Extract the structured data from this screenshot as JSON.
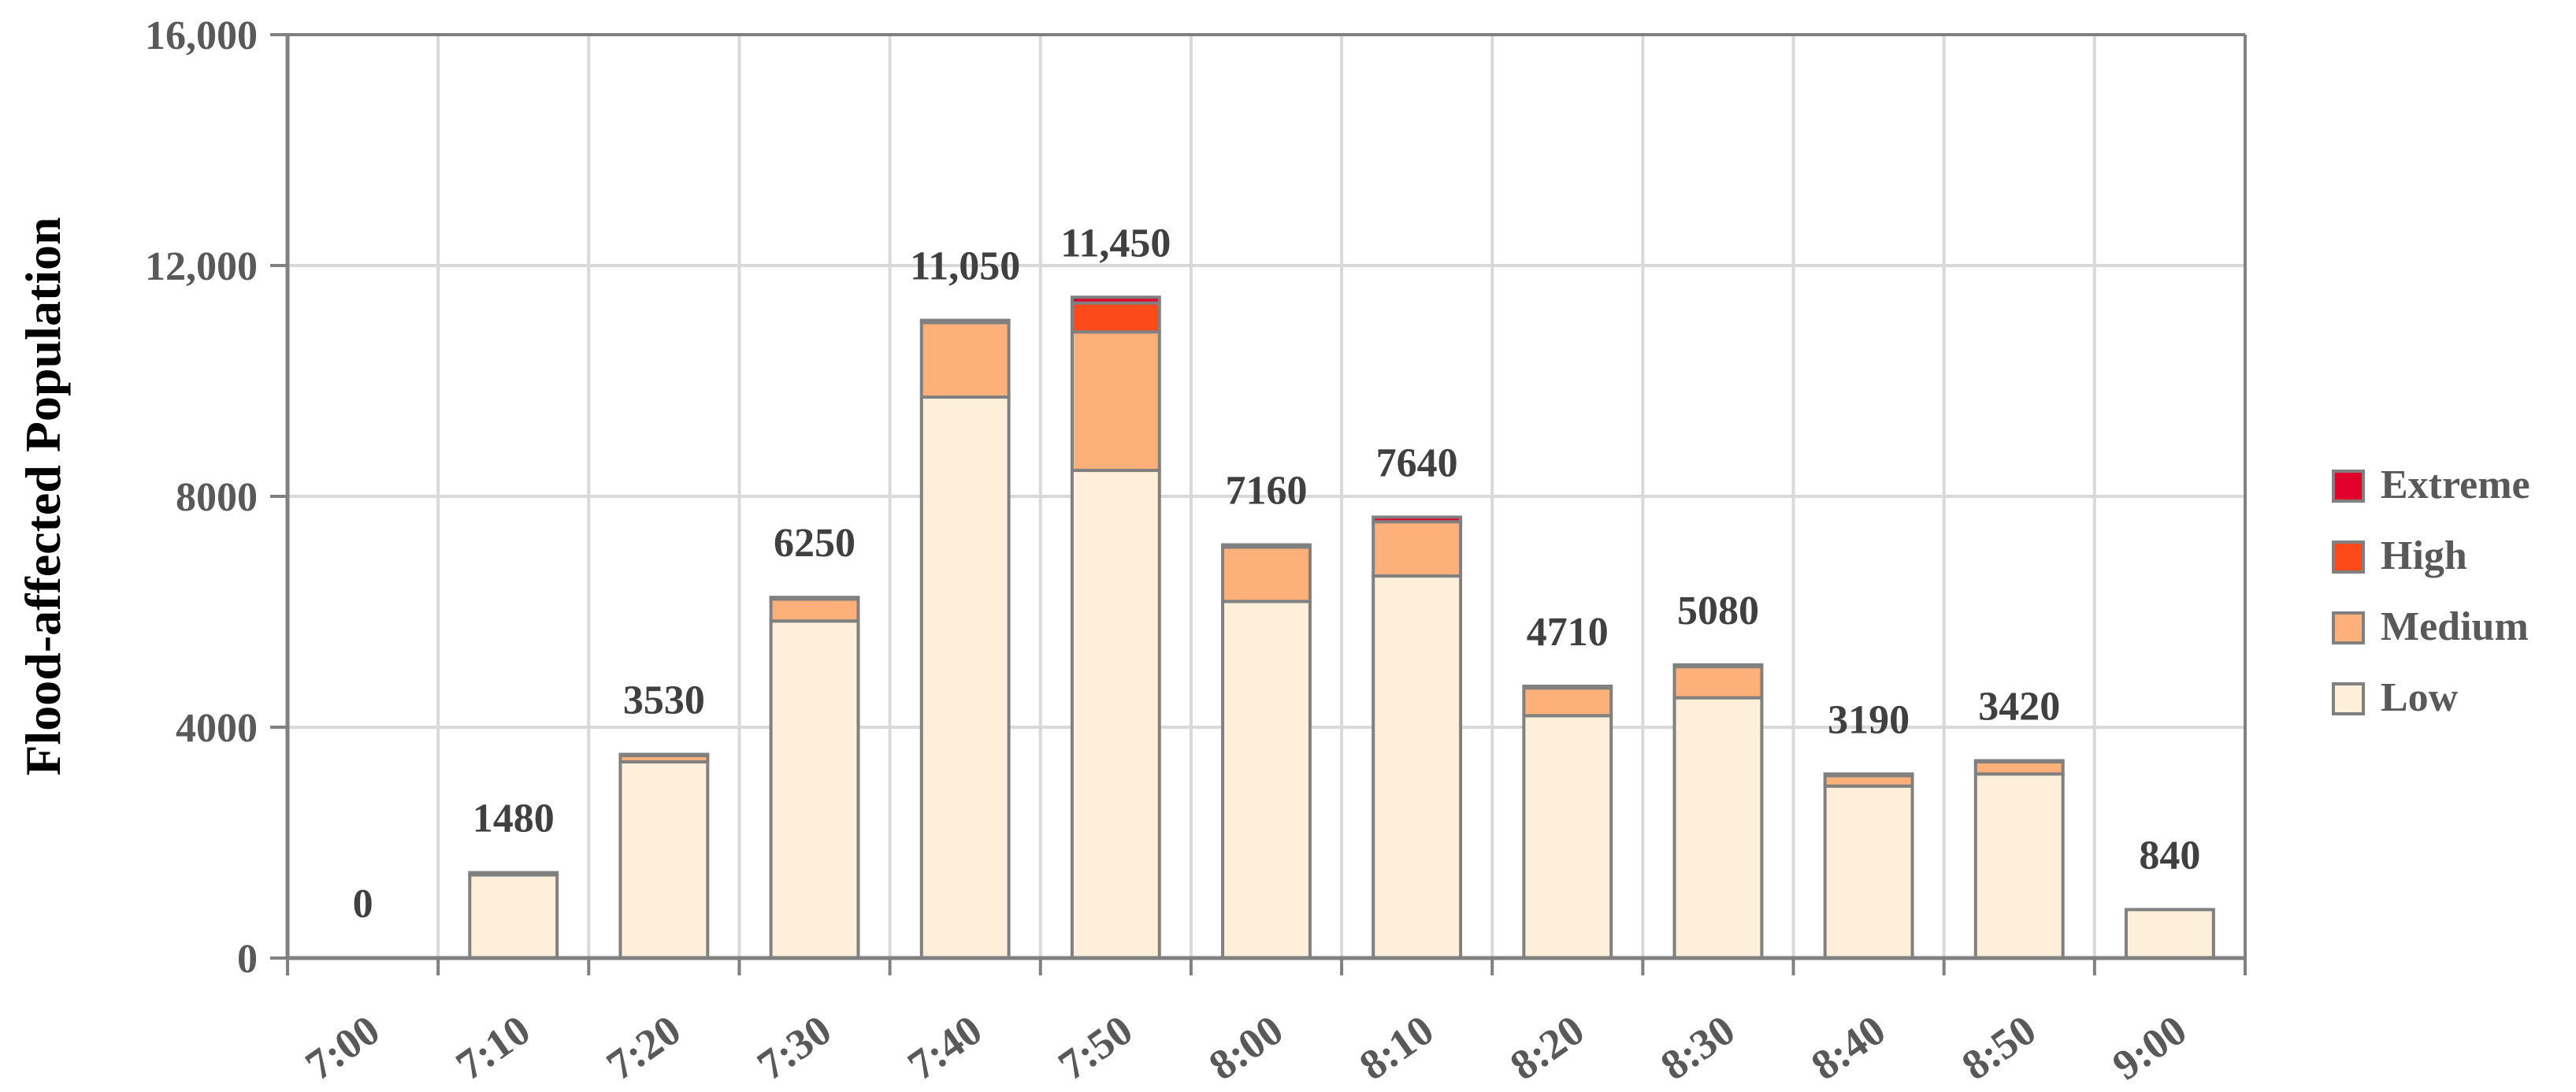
{
  "chart_data": {
    "type": "bar",
    "stacked": true,
    "title": "",
    "xlabel": "",
    "ylabel": "Flood-affected Population",
    "ylim": [
      0,
      16000
    ],
    "yticks": [
      0,
      4000,
      8000,
      12000,
      16000
    ],
    "ytick_labels": [
      "0",
      "4000",
      "8000",
      "12,000",
      "16,000"
    ],
    "grid": true,
    "legend_position": "right",
    "categories": [
      "7:00",
      "7:10",
      "7:20",
      "7:30",
      "7:40",
      "7:50",
      "8:00",
      "8:10",
      "8:20",
      "8:30",
      "8:40",
      "8:50",
      "9:00"
    ],
    "series": [
      {
        "name": "Low",
        "color": "#FDEFD9",
        "values": [
          0,
          1440,
          3400,
          5840,
          9720,
          8450,
          6180,
          6620,
          4200,
          4510,
          2980,
          3190,
          840
        ]
      },
      {
        "name": "Medium",
        "color": "#FDB07A",
        "values": [
          0,
          0,
          110,
          380,
          1290,
          2400,
          940,
          940,
          480,
          540,
          180,
          210,
          0
        ]
      },
      {
        "name": "High",
        "color": "#FC4A1A",
        "values": [
          0,
          0,
          0,
          0,
          0,
          500,
          0,
          0,
          0,
          0,
          0,
          0,
          0
        ]
      },
      {
        "name": "Extreme",
        "color": "#E0002A",
        "values": [
          0,
          40,
          20,
          30,
          40,
          100,
          40,
          80,
          30,
          30,
          30,
          20,
          0
        ]
      }
    ],
    "totals": [
      0,
      1480,
      3530,
      6250,
      11050,
      11450,
      7160,
      7640,
      4710,
      5080,
      3190,
      3420,
      840
    ],
    "total_labels": [
      "0",
      "1480",
      "3530",
      "6250",
      "11,050",
      "11,450",
      "7160",
      "7640",
      "4710",
      "5080",
      "3190",
      "3420",
      "840"
    ],
    "legend_order": [
      "Extreme",
      "High",
      "Medium",
      "Low"
    ]
  }
}
